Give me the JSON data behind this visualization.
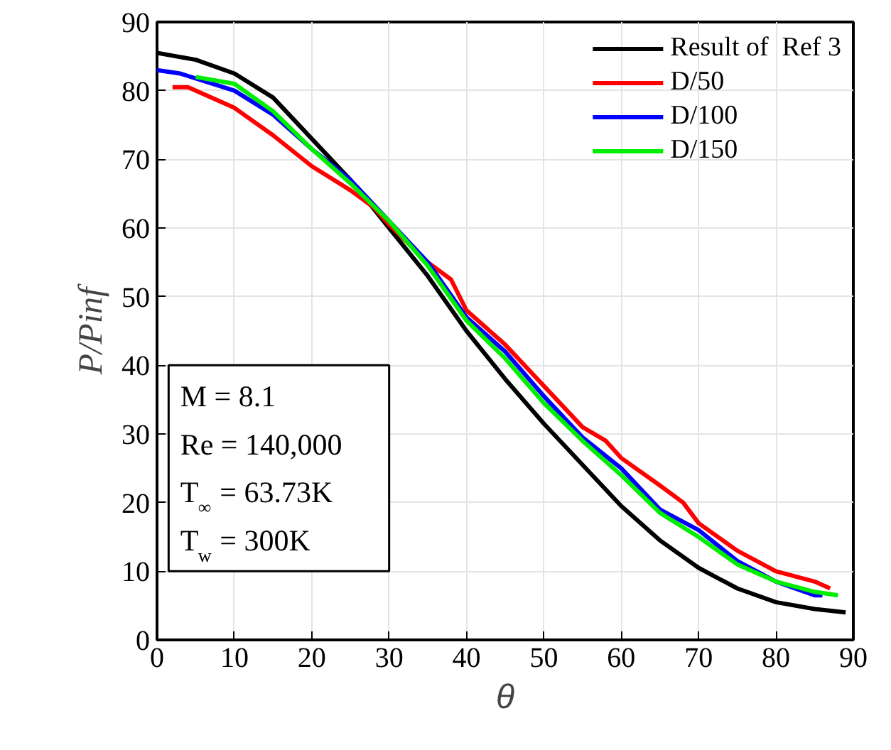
{
  "chart_data": {
    "type": "line",
    "xlabel": "θ",
    "ylabel": "P/Pinf",
    "xlim": [
      0,
      90
    ],
    "ylim": [
      0,
      90
    ],
    "xticks": [
      0,
      10,
      20,
      30,
      40,
      50,
      60,
      70,
      80,
      90
    ],
    "yticks": [
      0,
      10,
      20,
      30,
      40,
      50,
      60,
      70,
      80,
      90
    ],
    "grid": true,
    "legend": "top right",
    "marker": "none",
    "line_style": "solid",
    "annotations": [
      "M = 8.1",
      "Re = 140,000",
      "T$_{∞}$ = 63.73K",
      "T$_{w}$ = 300K"
    ],
    "series": [
      {
        "name": "Result of  Ref 3",
        "color": "#000000",
        "x": [
          0,
          5,
          10,
          15,
          20,
          25,
          30,
          35,
          40,
          45,
          50,
          55,
          60,
          65,
          70,
          75,
          80,
          85,
          89
        ],
        "values": [
          85.5,
          84.5,
          82.5,
          79,
          73,
          67,
          60,
          53,
          45,
          38,
          31.5,
          25.5,
          19.5,
          14.5,
          10.5,
          7.5,
          5.5,
          4.5,
          4
        ]
      },
      {
        "name": "D/50",
        "color": "#ff0000",
        "x": [
          2,
          4,
          10,
          15,
          20,
          25,
          28,
          30,
          35,
          38,
          40,
          45,
          50,
          55,
          58,
          60,
          65,
          68,
          70,
          75,
          80,
          85,
          87
        ],
        "values": [
          80.5,
          80.5,
          77.5,
          73.5,
          69,
          65.5,
          63,
          60.5,
          55,
          52.5,
          48,
          43,
          37,
          31,
          29,
          26.5,
          22.5,
          20,
          17,
          13,
          10,
          8.5,
          7.5
        ]
      },
      {
        "name": "D/100",
        "color": "#0000ff",
        "x": [
          0,
          3,
          10,
          15,
          20,
          25,
          30,
          35,
          40,
          45,
          50,
          55,
          60,
          65,
          70,
          75,
          80,
          85,
          86
        ],
        "values": [
          83,
          82.5,
          80,
          76.5,
          71.5,
          67,
          61,
          55,
          47,
          42,
          35.5,
          29.5,
          25,
          19,
          16,
          11.5,
          8.5,
          6.5,
          6.5
        ]
      },
      {
        "name": "D/150",
        "color": "#00ee00",
        "x": [
          5,
          10,
          15,
          20,
          25,
          30,
          35,
          40,
          45,
          50,
          55,
          60,
          65,
          70,
          75,
          80,
          85,
          88
        ],
        "values": [
          82,
          81,
          77,
          71.5,
          66.5,
          61,
          54.5,
          46.5,
          41,
          34.5,
          29,
          24,
          18.5,
          15,
          11,
          8.5,
          7,
          6.5
        ]
      }
    ]
  }
}
